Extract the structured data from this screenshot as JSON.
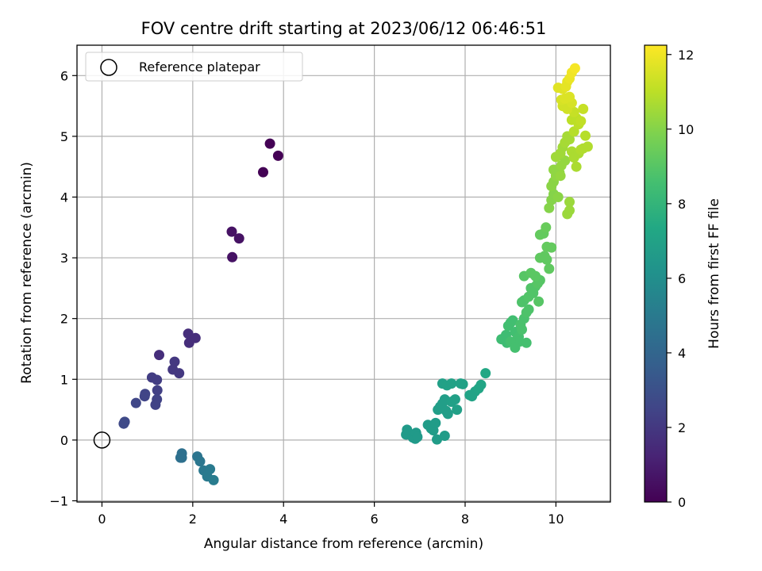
{
  "chart_data": {
    "type": "scatter",
    "title": "FOV centre drift starting at 2023/06/12 06:46:51",
    "xlabel": "Angular distance from reference (arcmin)",
    "ylabel": "Rotation from reference (arcmin)",
    "xlim": [
      -0.55,
      11.2
    ],
    "ylim": [
      -1.02,
      6.5
    ],
    "xticks": [
      0,
      2,
      4,
      6,
      8,
      10
    ],
    "yticks": [
      -1,
      0,
      1,
      2,
      3,
      4,
      5,
      6
    ],
    "grid": true,
    "legend": {
      "placement": "top-left",
      "entries": [
        "Reference platepar"
      ]
    },
    "reference_point": {
      "x": 0,
      "y": 0,
      "label": "Reference platepar"
    },
    "colorbar": {
      "label": "Hours from first FF file",
      "colormap": "viridis",
      "range": [
        0,
        12.25
      ],
      "ticks": [
        0,
        2,
        4,
        6,
        8,
        10,
        12
      ]
    },
    "points": [
      [
        3.55,
        4.41,
        0.05
      ],
      [
        3.7,
        4.88,
        0.05
      ],
      [
        3.88,
        4.68,
        0.05
      ],
      [
        2.86,
        3.43,
        0.6
      ],
      [
        3.02,
        3.32,
        0.6
      ],
      [
        2.87,
        3.01,
        0.6
      ],
      [
        1.9,
        1.75,
        1.6
      ],
      [
        1.92,
        1.6,
        1.6
      ],
      [
        2.06,
        1.68,
        1.6
      ],
      [
        1.26,
        1.4,
        1.6
      ],
      [
        1.6,
        1.29,
        2.0
      ],
      [
        1.56,
        1.16,
        2.0
      ],
      [
        1.7,
        1.1,
        2.0
      ],
      [
        1.1,
        1.03,
        2.2
      ],
      [
        1.21,
        0.99,
        2.2
      ],
      [
        1.22,
        0.82,
        2.3
      ],
      [
        1.21,
        0.67,
        2.4
      ],
      [
        1.18,
        0.58,
        2.4
      ],
      [
        0.94,
        0.72,
        2.5
      ],
      [
        0.95,
        0.76,
        2.5
      ],
      [
        0.75,
        0.61,
        2.6
      ],
      [
        0.5,
        0.3,
        2.7
      ],
      [
        0.48,
        0.27,
        2.7
      ],
      [
        1.76,
        -0.22,
        4.5
      ],
      [
        1.76,
        -0.29,
        4.5
      ],
      [
        1.73,
        -0.29,
        4.5
      ],
      [
        2.1,
        -0.27,
        4.7
      ],
      [
        2.16,
        -0.35,
        4.8
      ],
      [
        2.24,
        -0.5,
        4.9
      ],
      [
        2.32,
        -0.6,
        5.0
      ],
      [
        2.38,
        -0.48,
        5.0
      ],
      [
        2.46,
        -0.66,
        5.1
      ],
      [
        6.7,
        0.09,
        6.6
      ],
      [
        6.72,
        0.17,
        6.6
      ],
      [
        6.85,
        0.04,
        6.6
      ],
      [
        6.9,
        0.02,
        6.6
      ],
      [
        6.92,
        0.12,
        6.6
      ],
      [
        6.95,
        0.05,
        6.6
      ],
      [
        7.18,
        0.25,
        6.7
      ],
      [
        7.25,
        0.19,
        6.7
      ],
      [
        7.3,
        0.16,
        6.7
      ],
      [
        7.35,
        0.28,
        6.7
      ],
      [
        7.38,
        0.01,
        6.7
      ],
      [
        7.55,
        0.07,
        6.7
      ],
      [
        7.4,
        0.5,
        6.8
      ],
      [
        7.45,
        0.55,
        6.8
      ],
      [
        7.5,
        0.6,
        6.8
      ],
      [
        7.55,
        0.67,
        6.8
      ],
      [
        7.58,
        0.48,
        6.8
      ],
      [
        7.62,
        0.43,
        6.8
      ],
      [
        7.7,
        0.63,
        6.9
      ],
      [
        7.78,
        0.67,
        6.9
      ],
      [
        7.82,
        0.5,
        6.9
      ],
      [
        7.5,
        0.93,
        6.9
      ],
      [
        7.6,
        0.9,
        7.0
      ],
      [
        7.7,
        0.93,
        7.0
      ],
      [
        7.9,
        0.93,
        7.0
      ],
      [
        7.95,
        0.92,
        7.0
      ],
      [
        8.1,
        0.74,
        7.1
      ],
      [
        8.15,
        0.72,
        7.1
      ],
      [
        8.22,
        0.8,
        7.1
      ],
      [
        8.3,
        0.85,
        7.2
      ],
      [
        8.35,
        0.91,
        7.2
      ],
      [
        8.45,
        1.1,
        7.3
      ],
      [
        8.8,
        1.66,
        8.4
      ],
      [
        8.9,
        1.73,
        8.4
      ],
      [
        8.92,
        1.6,
        8.4
      ],
      [
        8.95,
        1.88,
        8.5
      ],
      [
        9.0,
        1.93,
        8.5
      ],
      [
        9.05,
        1.97,
        8.5
      ],
      [
        9.1,
        1.78,
        8.5
      ],
      [
        9.15,
        1.66,
        8.6
      ],
      [
        9.18,
        1.7,
        8.6
      ],
      [
        9.2,
        1.62,
        8.6
      ],
      [
        9.0,
        1.62,
        8.6
      ],
      [
        9.35,
        1.6,
        8.6
      ],
      [
        9.1,
        1.52,
        8.6
      ],
      [
        9.25,
        1.82,
        8.7
      ],
      [
        9.22,
        1.9,
        8.7
      ],
      [
        9.3,
        2.0,
        8.7
      ],
      [
        9.35,
        2.1,
        8.8
      ],
      [
        9.4,
        2.15,
        8.8
      ],
      [
        9.25,
        2.27,
        8.8
      ],
      [
        9.3,
        2.3,
        8.8
      ],
      [
        9.4,
        2.36,
        8.9
      ],
      [
        9.5,
        2.42,
        8.9
      ],
      [
        9.45,
        2.5,
        8.9
      ],
      [
        9.55,
        2.53,
        8.9
      ],
      [
        9.6,
        2.58,
        9.0
      ],
      [
        9.65,
        2.63,
        9.0
      ],
      [
        9.62,
        2.28,
        9.0
      ],
      [
        9.3,
        2.7,
        9.0
      ],
      [
        9.45,
        2.75,
        9.1
      ],
      [
        9.55,
        2.7,
        9.1
      ],
      [
        9.65,
        3.0,
        9.2
      ],
      [
        9.75,
        3.03,
        9.2
      ],
      [
        9.8,
        2.97,
        9.2
      ],
      [
        9.85,
        2.82,
        9.2
      ],
      [
        9.8,
        3.18,
        9.3
      ],
      [
        9.9,
        3.17,
        9.3
      ],
      [
        9.65,
        3.38,
        9.3
      ],
      [
        9.73,
        3.4,
        9.3
      ],
      [
        9.78,
        3.5,
        9.4
      ],
      [
        9.85,
        3.82,
        10.0
      ],
      [
        9.9,
        3.95,
        10.0
      ],
      [
        9.95,
        4.05,
        10.0
      ],
      [
        10.05,
        4.0,
        10.1
      ],
      [
        9.9,
        4.18,
        10.1
      ],
      [
        9.95,
        4.25,
        10.1
      ],
      [
        10.0,
        4.35,
        10.2
      ],
      [
        10.08,
        4.4,
        10.2
      ],
      [
        9.95,
        4.45,
        10.2
      ],
      [
        10.12,
        4.52,
        10.3
      ],
      [
        10.2,
        4.6,
        10.3
      ],
      [
        10.1,
        4.35,
        10.3
      ],
      [
        10.25,
        3.72,
        10.4
      ],
      [
        10.3,
        3.78,
        10.4
      ],
      [
        10.3,
        3.92,
        10.4
      ],
      [
        10.0,
        4.66,
        10.5
      ],
      [
        10.1,
        4.72,
        10.5
      ],
      [
        10.15,
        4.82,
        10.5
      ],
      [
        10.2,
        4.9,
        10.6
      ],
      [
        10.25,
        5.0,
        10.6
      ],
      [
        10.3,
        4.95,
        10.6
      ],
      [
        10.35,
        4.75,
        10.7
      ],
      [
        10.4,
        4.65,
        10.7
      ],
      [
        10.45,
        4.5,
        10.7
      ],
      [
        10.5,
        4.72,
        10.7
      ],
      [
        10.55,
        4.78,
        10.8
      ],
      [
        10.6,
        4.8,
        10.8
      ],
      [
        10.7,
        4.83,
        10.8
      ],
      [
        10.65,
        5.01,
        10.9
      ],
      [
        10.4,
        5.08,
        10.9
      ],
      [
        10.5,
        5.2,
        11.0
      ],
      [
        10.35,
        5.27,
        11.0
      ],
      [
        10.45,
        5.3,
        11.0
      ],
      [
        10.55,
        5.25,
        11.1
      ],
      [
        10.4,
        5.4,
        11.2
      ],
      [
        10.6,
        5.45,
        11.2
      ],
      [
        10.15,
        5.5,
        11.4
      ],
      [
        10.25,
        5.45,
        11.4
      ],
      [
        10.35,
        5.55,
        11.5
      ],
      [
        10.12,
        5.6,
        11.5
      ],
      [
        10.2,
        5.62,
        11.6
      ],
      [
        10.3,
        5.65,
        11.6
      ],
      [
        10.05,
        5.8,
        11.7
      ],
      [
        10.15,
        5.78,
        11.7
      ],
      [
        10.22,
        5.82,
        11.8
      ],
      [
        10.25,
        5.9,
        11.8
      ],
      [
        10.3,
        5.95,
        11.9
      ],
      [
        10.35,
        6.05,
        12.0
      ],
      [
        10.42,
        6.12,
        12.1
      ]
    ]
  }
}
